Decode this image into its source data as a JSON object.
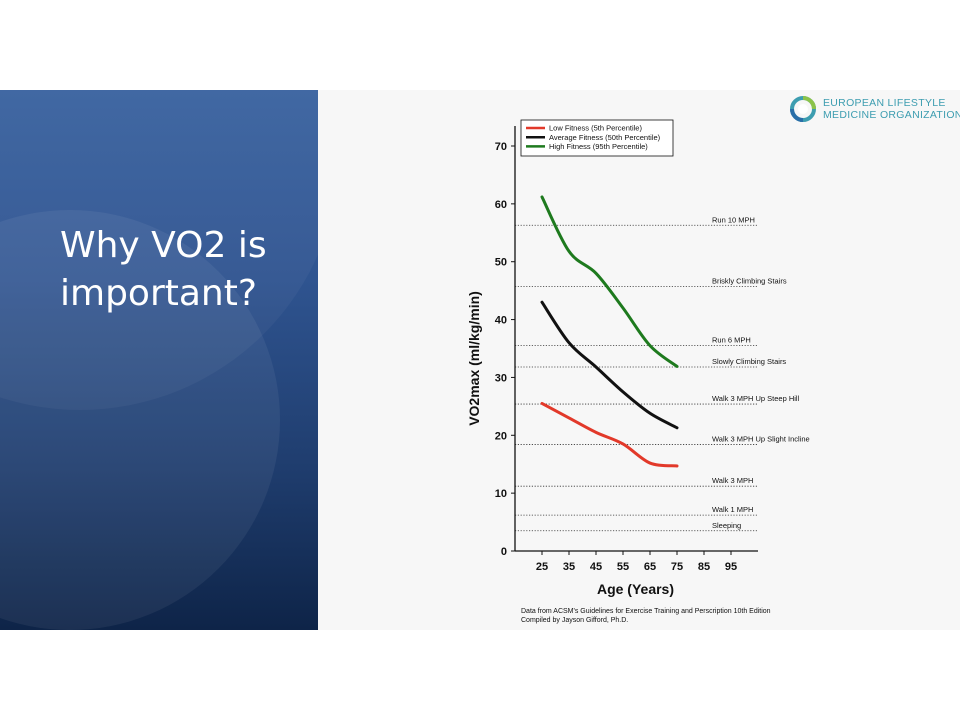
{
  "slide": {
    "title": "Why VO2 is important?"
  },
  "logo": {
    "line1": "EUROPEAN LIFESTYLE",
    "line2": "MEDICINE ORGANIZATION",
    "colors": {
      "teal": "#3d9db0",
      "green": "#8cc34a",
      "blue": "#2a6ea8"
    }
  },
  "chart_data": {
    "type": "line",
    "xlabel": "Age (Years)",
    "ylabel": "VO2max (ml/kg/min)",
    "xlim": [
      15,
      105
    ],
    "ylim": [
      0,
      70
    ],
    "x_ticks": [
      25,
      35,
      45,
      55,
      65,
      75,
      85,
      95
    ],
    "y_ticks": [
      0,
      10,
      20,
      30,
      40,
      50,
      60,
      70
    ],
    "grid": false,
    "legend_position": "top-left",
    "series": [
      {
        "name": "Low Fitness (5th Percentile)",
        "color": "#e2392a",
        "points": [
          [
            25,
            25.5
          ],
          [
            35,
            23
          ],
          [
            45,
            20.5
          ],
          [
            55,
            18.5
          ],
          [
            65,
            15.2
          ],
          [
            75,
            14.7
          ]
        ]
      },
      {
        "name": "Average Fitness (50th Percentile)",
        "color": "#111111",
        "points": [
          [
            25,
            43
          ],
          [
            35,
            36
          ],
          [
            45,
            31.8
          ],
          [
            55,
            27.5
          ],
          [
            65,
            23.8
          ],
          [
            75,
            21.3
          ]
        ]
      },
      {
        "name": "High Fitness (95th Percentile)",
        "color": "#1e7a1e",
        "points": [
          [
            25,
            61.2
          ],
          [
            35,
            51.8
          ],
          [
            45,
            48
          ],
          [
            55,
            42
          ],
          [
            65,
            35.5
          ],
          [
            75,
            31.9
          ]
        ]
      }
    ],
    "reference_lines": [
      {
        "label": "Run 10 MPH",
        "y": 56.3
      },
      {
        "label": "Briskly Climbing Stairs",
        "y": 45.7
      },
      {
        "label": "Run 6 MPH",
        "y": 35.5
      },
      {
        "label": "Slowly Climbing Stairs",
        "y": 31.8
      },
      {
        "label": "Walk 3 MPH Up Steep Hill",
        "y": 25.4
      },
      {
        "label": "Walk 3 MPH Up Slight Incline",
        "y": 18.4
      },
      {
        "label": "Walk 3 MPH",
        "y": 11.2
      },
      {
        "label": "Walk 1 MPH",
        "y": 6.2
      },
      {
        "label": "Sleeping",
        "y": 3.5
      }
    ]
  },
  "footnote": {
    "line1": "Data from ACSM's Guidelines for Exercise Training and Perscription 10th Edition",
    "line2": "Compiled by Jayson Gifford, Ph.D."
  }
}
